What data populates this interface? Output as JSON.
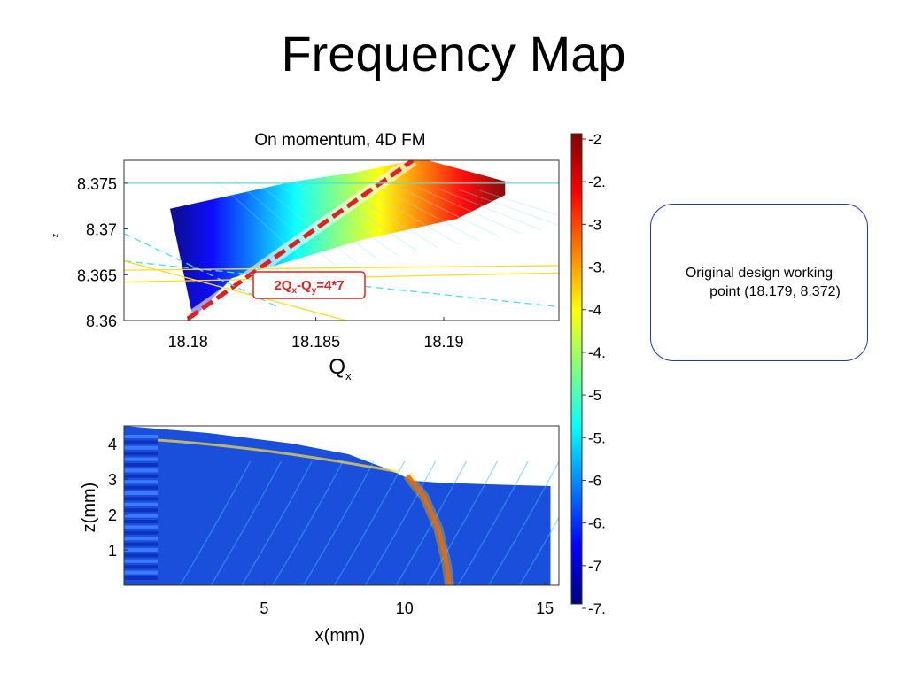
{
  "slide": {
    "title": "Frequency Map",
    "callout": {
      "line1": "Original design working",
      "line2": "point (18.179, 8.372)"
    }
  },
  "chart_data": [
    {
      "type": "scatter",
      "title": "On momentum, 4D FM",
      "xlabel": "Q",
      "xlabel_sub": "x",
      "ylabel": "z",
      "xlim": [
        18.1775,
        18.1945
      ],
      "ylim": [
        8.36,
        8.3775
      ],
      "xticks": [
        18.18,
        18.185,
        18.19
      ],
      "xtick_labels": [
        "18.18",
        "18.185",
        "18.19"
      ],
      "yticks": [
        8.36,
        8.365,
        8.37,
        8.375
      ],
      "ytick_labels": [
        "8.36",
        "8.365",
        "8.37",
        "8.375"
      ],
      "region": {
        "top_edge": [
          [
            18.1793,
            8.3722
          ],
          [
            18.184,
            8.3751
          ],
          [
            18.1866,
            8.3762
          ],
          [
            18.1891,
            8.3777
          ],
          [
            18.1924,
            8.3752
          ]
        ],
        "bottom_edge": [
          [
            18.1924,
            8.3737
          ],
          [
            18.1905,
            8.3711
          ],
          [
            18.1868,
            8.3688
          ],
          [
            18.1817,
            8.3646
          ],
          [
            18.1802,
            8.3602
          ]
        ]
      },
      "resonance_lines": [
        {
          "label": "2Qx-Qy=4*7",
          "label_main": "2Q",
          "label_sub1": "x",
          "label_mid": "-Q",
          "label_sub2": "y",
          "label_end": "=4*7",
          "color": "#dd2222",
          "points": [
            [
              18.18,
              8.3602
            ],
            [
              18.1888,
              8.3775
            ]
          ]
        },
        {
          "color": "#55dddd",
          "style": "solid",
          "points": [
            [
              18.1775,
              8.375
            ],
            [
              18.1945,
              8.375
            ]
          ]
        },
        {
          "color": "#55dddd",
          "style": "dashed",
          "points": [
            [
              18.1775,
              8.3665
            ],
            [
              18.1945,
              8.3615
            ]
          ]
        },
        {
          "color": "#55dddd",
          "style": "dashed",
          "points": [
            [
              18.1775,
              8.3695
            ],
            [
              18.1835,
              8.3615
            ]
          ]
        },
        {
          "color": "#ffdd22",
          "style": "solid",
          "points": [
            [
              18.1775,
              8.3655
            ],
            [
              18.1945,
              8.366
            ]
          ]
        },
        {
          "color": "#ffdd22",
          "style": "solid",
          "points": [
            [
              18.1775,
              8.3665
            ],
            [
              18.1862,
              8.36
            ]
          ]
        },
        {
          "color": "#ffdd22",
          "style": "solid",
          "points": [
            [
              18.1775,
              8.3642
            ],
            [
              18.1945,
              8.3652
            ]
          ]
        }
      ],
      "cyan_line_y": 8.375
    },
    {
      "type": "heatmap",
      "xlabel": "x(mm)",
      "ylabel": "z(mm)",
      "xlim": [
        0,
        15.5
      ],
      "ylim": [
        0,
        4.5
      ],
      "xticks": [
        5,
        10,
        15
      ],
      "xtick_labels": [
        "5",
        "10",
        "15"
      ],
      "yticks": [
        1,
        2,
        3,
        4
      ],
      "ytick_labels": [
        "1",
        "2",
        "3",
        "4"
      ],
      "boundary": [
        [
          0,
          4.5
        ],
        [
          3,
          4.3
        ],
        [
          6,
          4.0
        ],
        [
          8,
          3.7
        ],
        [
          9.5,
          3.25
        ],
        [
          10.3,
          2.95
        ],
        [
          11.2,
          2.9
        ],
        [
          13,
          2.85
        ],
        [
          15.2,
          2.8
        ],
        [
          15.2,
          0
        ]
      ],
      "resonance_curve": [
        [
          10.1,
          3.1
        ],
        [
          10.7,
          2.5
        ],
        [
          11.2,
          1.6
        ],
        [
          11.5,
          0.6
        ],
        [
          11.6,
          0
        ]
      ]
    },
    {
      "type": "colorbar",
      "ticks": [
        "-2",
        "-2.",
        "-3",
        "-3.",
        "-4",
        "-4.",
        "-5",
        "-5.",
        "-6",
        "-6.",
        "-7",
        "-7."
      ],
      "colors": [
        "#7f0000",
        "#ff0000",
        "#ff8000",
        "#ffff00",
        "#80ff80",
        "#00ffff",
        "#0080ff",
        "#0000ff",
        "#00007f"
      ]
    }
  ]
}
